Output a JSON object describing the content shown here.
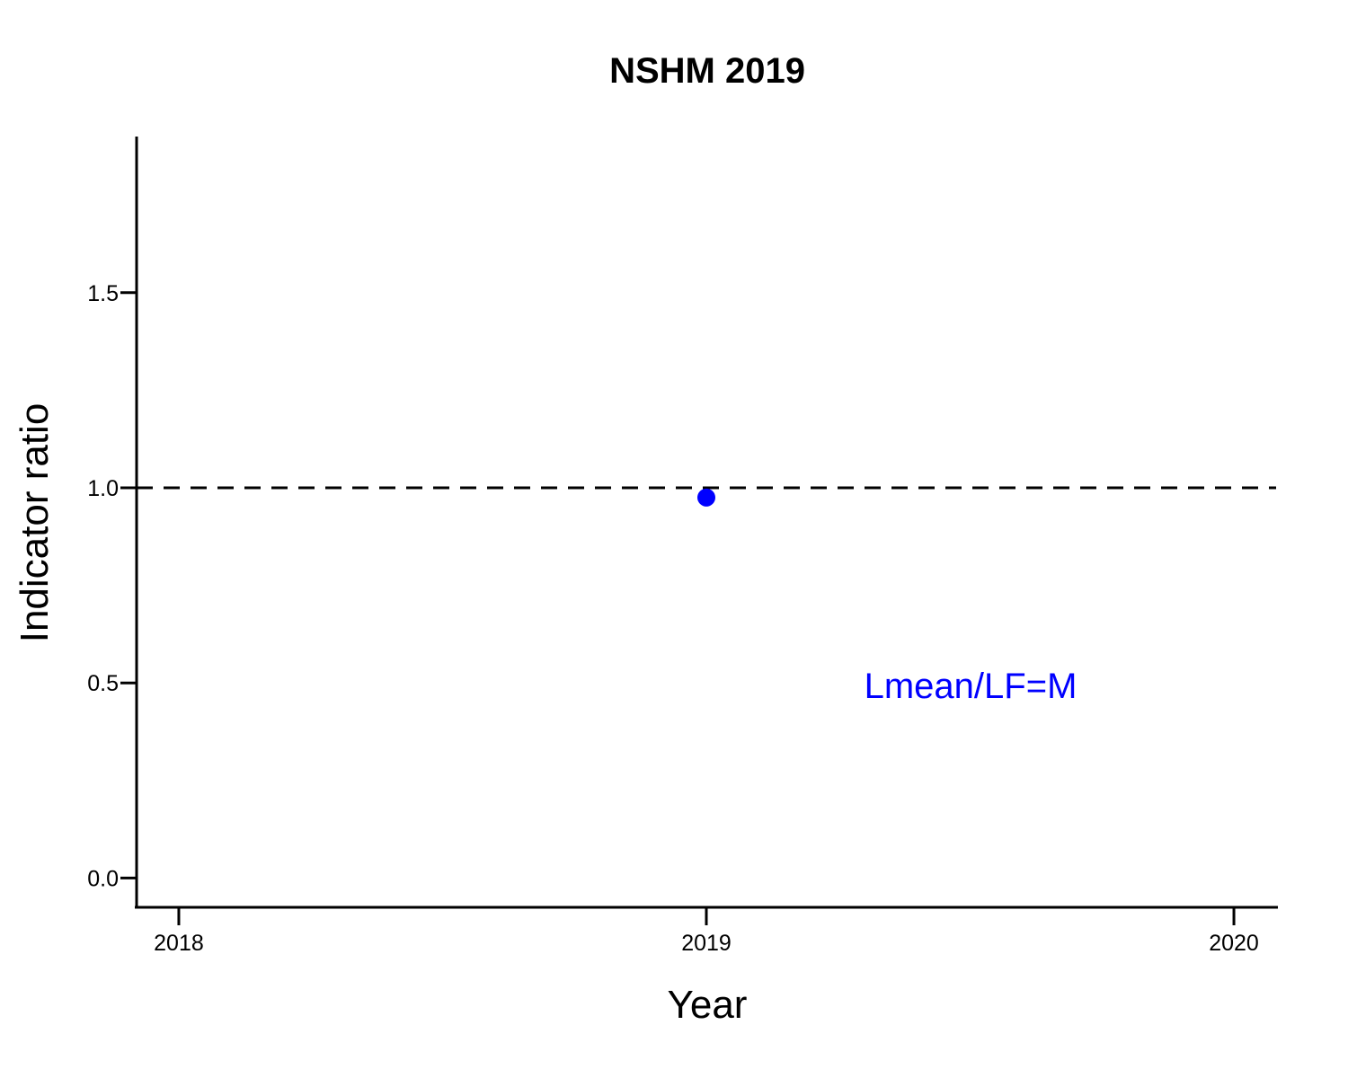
{
  "chart_data": {
    "type": "scatter",
    "title": "NSHM 2019",
    "xlabel": "Year",
    "ylabel": "Indicator ratio",
    "xlim": [
      2017.92,
      2020.08
    ],
    "ylim": [
      -0.075,
      1.9
    ],
    "x_ticks": [
      2018,
      2019,
      2020
    ],
    "x_tick_labels": [
      "2018",
      "2019",
      "2020"
    ],
    "y_ticks": [
      0.0,
      0.5,
      1.0,
      1.5
    ],
    "y_tick_labels": [
      "0.0",
      "0.5",
      "1.0",
      "1.5"
    ],
    "series": [
      {
        "name": "Lmean/LF=M",
        "x": [
          2019
        ],
        "y": [
          0.975
        ],
        "color": "#0000ff"
      }
    ],
    "reference_line": {
      "y": 1.0,
      "style": "dashed",
      "color": "#000000"
    },
    "annotation": {
      "text": "Lmean/LF=M",
      "color": "#0000ff",
      "position": "lower-right"
    },
    "grid": false
  }
}
